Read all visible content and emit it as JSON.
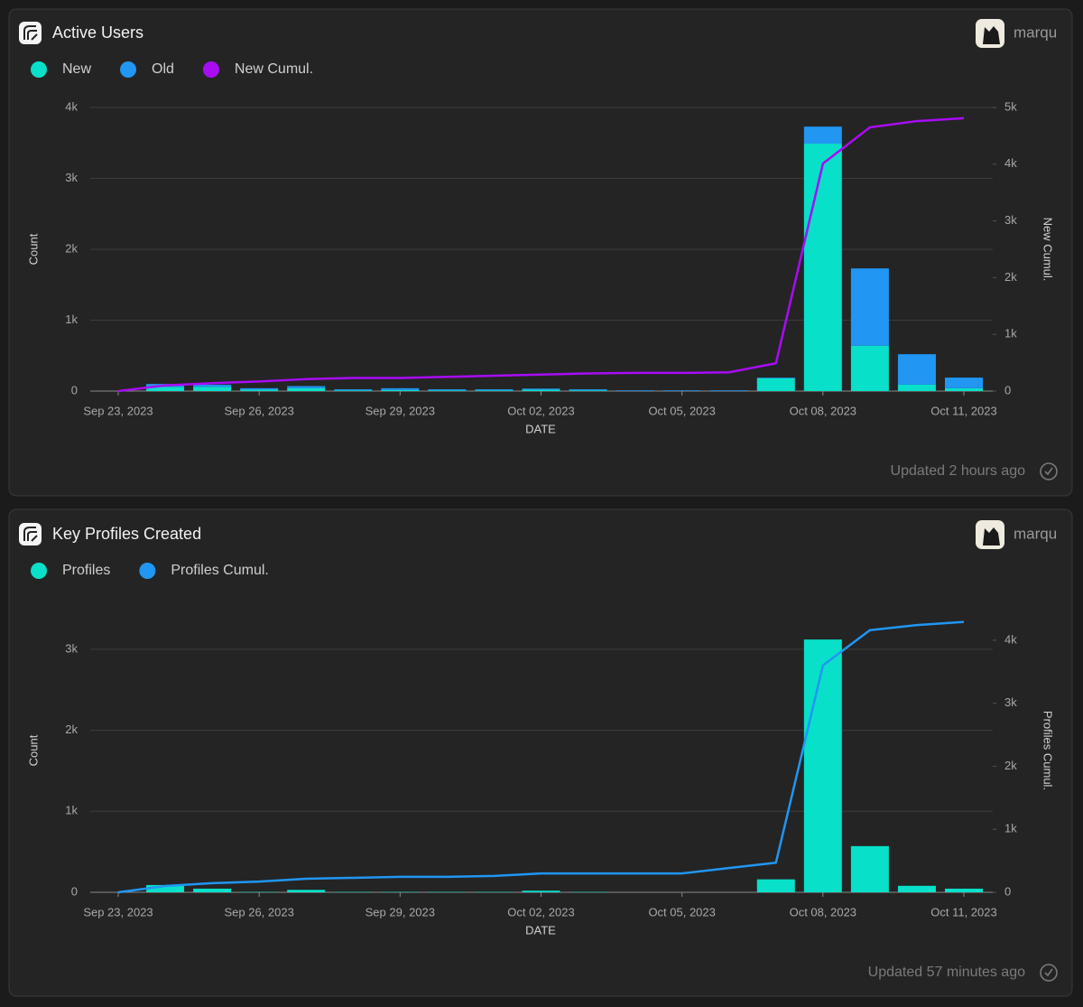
{
  "chart_data": [
    {
      "type": "bar",
      "title": "Active Users",
      "author": "marqu",
      "updated": "Updated 2 hours ago",
      "x_label": "DATE",
      "y_label": "Count",
      "y2_label": "New Cumul.",
      "x": [
        "Sep 23, 2023",
        "Sep 24, 2023",
        "Sep 25, 2023",
        "Sep 26, 2023",
        "Sep 27, 2023",
        "Sep 28, 2023",
        "Sep 29, 2023",
        "Sep 30, 2023",
        "Oct 01, 2023",
        "Oct 02, 2023",
        "Oct 03, 2023",
        "Oct 04, 2023",
        "Oct 05, 2023",
        "Oct 06, 2023",
        "Oct 07, 2023",
        "Oct 08, 2023",
        "Oct 09, 2023",
        "Oct 10, 2023",
        "Oct 11, 2023"
      ],
      "series": [
        {
          "name": "New",
          "type": "bar",
          "color": "#08e0c9",
          "values": [
            0,
            60,
            60,
            20,
            40,
            10,
            15,
            10,
            10,
            20,
            10,
            0,
            0,
            0,
            180,
            3490,
            640,
            90,
            40
          ]
        },
        {
          "name": "Old",
          "type": "bar",
          "color": "#2196f3",
          "values": [
            0,
            40,
            30,
            20,
            30,
            15,
            25,
            15,
            15,
            15,
            15,
            10,
            10,
            10,
            10,
            240,
            1090,
            430,
            150
          ]
        },
        {
          "name": "New Cumul.",
          "type": "line",
          "axis": "y2",
          "color": "#a80cf5",
          "values": [
            0,
            100,
            140,
            170,
            210,
            230,
            230,
            250,
            270,
            290,
            310,
            320,
            320,
            330,
            490,
            4010,
            4650,
            4760,
            4810
          ]
        }
      ],
      "ylim": [
        0,
        4000
      ],
      "yticks": [
        0,
        {
          "value": 1000,
          "label": "1k"
        },
        {
          "value": 2000,
          "label": "2k"
        },
        {
          "value": 3000,
          "label": "3k"
        },
        {
          "value": 4000,
          "label": "4k"
        }
      ],
      "y2lim": [
        0,
        5000
      ],
      "y2ticks": [
        0,
        {
          "value": 1000,
          "label": "1k"
        },
        {
          "value": 2000,
          "label": "2k"
        },
        {
          "value": 3000,
          "label": "3k"
        },
        {
          "value": 4000,
          "label": "4k"
        },
        {
          "value": 5000,
          "label": "5k"
        }
      ],
      "grid": true
    },
    {
      "type": "bar",
      "title": "Key Profiles Created",
      "author": "marqu",
      "updated": "Updated 57 minutes ago",
      "x_label": "DATE",
      "y_label": "Count",
      "y2_label": "Profiles Cumul.",
      "x": [
        "Sep 23, 2023",
        "Sep 24, 2023",
        "Sep 25, 2023",
        "Sep 26, 2023",
        "Sep 27, 2023",
        "Sep 28, 2023",
        "Sep 29, 2023",
        "Sep 30, 2023",
        "Oct 01, 2023",
        "Oct 02, 2023",
        "Oct 03, 2023",
        "Oct 04, 2023",
        "Oct 05, 2023",
        "Oct 06, 2023",
        "Oct 07, 2023",
        "Oct 08, 2023",
        "Oct 09, 2023",
        "Oct 10, 2023",
        "Oct 11, 2023"
      ],
      "series": [
        {
          "name": "Profiles",
          "type": "bar",
          "color": "#08e0c9",
          "values": [
            0,
            90,
            45,
            5,
            30,
            5,
            5,
            5,
            5,
            20,
            5,
            0,
            0,
            0,
            160,
            3120,
            570,
            80,
            45
          ]
        },
        {
          "name": "Profiles Cumul.",
          "type": "line",
          "axis": "y2",
          "color": "#2196f3",
          "values": [
            0,
            100,
            145,
            170,
            215,
            230,
            245,
            245,
            260,
            300,
            300,
            300,
            300,
            385,
            470,
            3600,
            4160,
            4240,
            4290
          ]
        }
      ],
      "ylim": [
        0,
        3500
      ],
      "yticks": [
        0,
        {
          "value": 1000,
          "label": "1k"
        },
        {
          "value": 2000,
          "label": "2k"
        },
        {
          "value": 3000,
          "label": "3k"
        }
      ],
      "y2lim": [
        0,
        4500
      ],
      "y2ticks": [
        0,
        {
          "value": 1000,
          "label": "1k"
        },
        {
          "value": 2000,
          "label": "2k"
        },
        {
          "value": 3000,
          "label": "3k"
        },
        {
          "value": 4000,
          "label": "4k"
        }
      ],
      "grid": true
    }
  ]
}
